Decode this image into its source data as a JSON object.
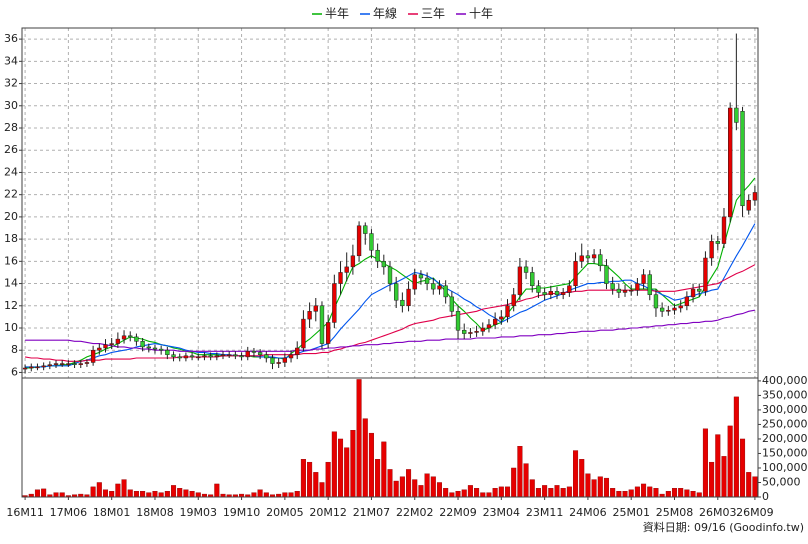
{
  "chart_data": {
    "type": "candlestick",
    "legend": "top",
    "grid": true,
    "up_color": "#e60000",
    "down_color": "#33cc33",
    "wick_color": "#202020",
    "categories": [
      "16M11",
      null,
      null,
      null,
      null,
      null,
      null,
      "17M06",
      null,
      null,
      null,
      null,
      null,
      null,
      "18M01",
      null,
      null,
      null,
      null,
      null,
      null,
      "18M08",
      null,
      null,
      null,
      null,
      null,
      null,
      "19M03",
      null,
      null,
      null,
      null,
      null,
      null,
      "19M10",
      null,
      null,
      null,
      null,
      null,
      null,
      "20M05",
      null,
      null,
      null,
      null,
      null,
      null,
      "20M12",
      null,
      null,
      null,
      null,
      null,
      null,
      "21M07",
      null,
      null,
      null,
      null,
      null,
      null,
      "22M02",
      null,
      null,
      null,
      null,
      null,
      null,
      "22M09",
      null,
      null,
      null,
      null,
      null,
      null,
      "23M04",
      null,
      null,
      null,
      null,
      null,
      null,
      "23M11",
      null,
      null,
      null,
      null,
      null,
      null,
      "24M06",
      null,
      null,
      null,
      null,
      null,
      null,
      "25M01",
      null,
      null,
      null,
      null,
      null,
      null,
      "25M08",
      null,
      null,
      null,
      null,
      null,
      null,
      "26M03",
      null,
      null,
      null,
      null,
      null,
      "26M09"
    ],
    "open": [
      6.3,
      6.4,
      6.5,
      6.5,
      6.6,
      6.7,
      6.8,
      6.8,
      6.8,
      6.7,
      6.8,
      6.9,
      8.0,
      8.2,
      8.5,
      8.6,
      9.0,
      9.3,
      9.2,
      8.8,
      8.3,
      8.2,
      8.1,
      8.0,
      7.6,
      7.4,
      7.3,
      7.5,
      7.4,
      7.4,
      7.5,
      7.4,
      7.5,
      7.6,
      7.6,
      7.5,
      7.4,
      7.9,
      7.8,
      7.6,
      7.3,
      6.8,
      6.9,
      7.3,
      7.6,
      8.2,
      10.8,
      11.5,
      12.0,
      8.6,
      10.5,
      14.0,
      15.0,
      15.5,
      16.5,
      19.2,
      18.5,
      17.0,
      16.0,
      15.5,
      14.0,
      12.5,
      12.0,
      13.5,
      14.8,
      14.5,
      14.0,
      13.5,
      13.8,
      12.8,
      11.5,
      9.8,
      9.5,
      9.6,
      9.7,
      10.0,
      10.3,
      10.8,
      11.0,
      12.0,
      13.0,
      15.5,
      15.0,
      13.8,
      13.2,
      13.0,
      13.3,
      13.0,
      13.2,
      13.8,
      16.0,
      16.5,
      16.3,
      16.6,
      15.6,
      14.0,
      13.5,
      13.2,
      13.4,
      13.4,
      14.0,
      14.8,
      13.0,
      11.8,
      11.5,
      11.6,
      11.8,
      12.0,
      12.8,
      13.5,
      13.3,
      16.3,
      17.8,
      17.6,
      20.0,
      29.8,
      29.5,
      20.6,
      21.5
    ],
    "high": [
      6.7,
      6.8,
      6.8,
      6.9,
      7.0,
      7.1,
      7.1,
      7.1,
      7.1,
      7.1,
      7.2,
      8.4,
      8.6,
      9.0,
      9.1,
      9.6,
      9.8,
      9.7,
      9.5,
      9.1,
      8.6,
      8.5,
      8.4,
      8.3,
      7.9,
      7.7,
      7.8,
      7.8,
      7.7,
      7.8,
      7.8,
      7.8,
      7.9,
      7.9,
      7.9,
      7.8,
      8.3,
      8.2,
      8.1,
      7.9,
      7.6,
      7.3,
      7.7,
      8.0,
      8.8,
      11.6,
      12.3,
      12.7,
      12.4,
      11.2,
      14.8,
      16.0,
      16.8,
      17.5,
      19.6,
      19.5,
      18.9,
      17.6,
      16.6,
      16.0,
      14.6,
      13.2,
      14.2,
      15.3,
      15.2,
      15.0,
      14.5,
      14.3,
      14.3,
      13.3,
      12.0,
      10.4,
      10.0,
      10.2,
      10.5,
      10.8,
      11.4,
      11.6,
      12.6,
      13.6,
      16.3,
      16.1,
      15.5,
      14.3,
      13.6,
      13.8,
      13.7,
      13.6,
      14.3,
      16.8,
      17.6,
      17.0,
      17.1,
      17.1,
      16.2,
      14.6,
      14.0,
      13.9,
      13.9,
      14.5,
      15.3,
      15.2,
      13.5,
      12.3,
      12.0,
      12.2,
      12.5,
      13.3,
      14.0,
      14.0,
      16.9,
      18.4,
      18.3,
      20.8,
      30.3,
      36.5,
      29.9,
      22.0,
      22.8
    ],
    "low": [
      5.9,
      6.1,
      6.2,
      6.2,
      6.3,
      6.4,
      6.5,
      6.5,
      6.4,
      6.4,
      6.5,
      6.6,
      7.6,
      7.8,
      8.1,
      8.2,
      8.6,
      8.8,
      8.4,
      7.9,
      7.8,
      7.7,
      7.6,
      7.2,
      7.0,
      7.0,
      7.0,
      7.1,
      7.1,
      7.1,
      7.1,
      7.1,
      7.2,
      7.3,
      7.2,
      7.1,
      7.1,
      7.4,
      7.2,
      6.9,
      6.3,
      6.4,
      6.5,
      6.9,
      7.2,
      7.9,
      10.0,
      10.6,
      8.1,
      8.2,
      10.0,
      13.0,
      14.2,
      14.8,
      16.0,
      17.5,
      16.3,
      15.4,
      14.8,
      13.3,
      11.8,
      11.4,
      11.5,
      13.0,
      13.9,
      13.4,
      13.0,
      13.0,
      12.2,
      11.0,
      9.0,
      9.0,
      9.1,
      9.2,
      9.3,
      9.6,
      9.9,
      10.3,
      10.5,
      11.5,
      12.5,
      14.4,
      13.2,
      12.7,
      12.5,
      12.6,
      12.6,
      12.6,
      12.8,
      13.3,
      15.4,
      15.8,
      15.8,
      15.1,
      13.5,
      13.0,
      12.7,
      12.8,
      12.9,
      12.9,
      13.5,
      12.5,
      11.0,
      11.0,
      11.1,
      11.2,
      11.4,
      11.6,
      12.3,
      12.8,
      12.9,
      15.6,
      17.0,
      17.2,
      19.5,
      27.8,
      20.0,
      20.2,
      21.0
    ],
    "close": [
      6.4,
      6.5,
      6.5,
      6.6,
      6.7,
      6.8,
      6.8,
      6.8,
      6.7,
      6.8,
      6.9,
      8.0,
      8.2,
      8.5,
      8.6,
      9.0,
      9.3,
      9.2,
      8.8,
      8.3,
      8.2,
      8.1,
      8.0,
      7.6,
      7.4,
      7.3,
      7.5,
      7.4,
      7.4,
      7.5,
      7.4,
      7.5,
      7.6,
      7.6,
      7.5,
      7.4,
      7.9,
      7.8,
      7.6,
      7.3,
      6.8,
      6.9,
      7.3,
      7.6,
      8.2,
      10.8,
      11.5,
      12.0,
      8.6,
      10.5,
      14.0,
      15.0,
      15.5,
      16.5,
      19.2,
      18.5,
      17.0,
      16.0,
      15.5,
      14.0,
      12.5,
      12.0,
      13.5,
      14.8,
      14.5,
      14.0,
      13.5,
      13.8,
      12.8,
      11.5,
      9.8,
      9.5,
      9.6,
      9.7,
      10.0,
      10.3,
      10.8,
      11.0,
      12.0,
      13.0,
      15.5,
      15.0,
      13.8,
      13.2,
      13.0,
      13.3,
      13.0,
      13.2,
      13.8,
      16.0,
      16.5,
      16.3,
      16.6,
      15.6,
      14.0,
      13.5,
      13.2,
      13.4,
      13.4,
      14.0,
      14.8,
      13.0,
      11.8,
      11.5,
      11.6,
      11.8,
      12.0,
      12.8,
      13.5,
      13.3,
      16.3,
      17.8,
      17.6,
      20.0,
      29.8,
      28.5,
      21.0,
      21.5,
      22.2
    ],
    "ylim": [
      5.5,
      37
    ],
    "yticks": [
      6,
      8,
      10,
      12,
      14,
      16,
      18,
      20,
      22,
      24,
      26,
      28,
      30,
      32,
      34,
      36
    ],
    "series": [
      {
        "name": "半年",
        "color": "#00b000",
        "values": [
          6.4,
          6.4,
          6.5,
          6.5,
          6.6,
          6.6,
          6.7,
          6.7,
          6.9,
          7.1,
          7.4,
          7.6,
          7.8,
          8.1,
          8.3,
          8.6,
          8.9,
          9.2,
          9.1,
          9.0,
          8.8,
          8.7,
          8.5,
          8.4,
          8.2,
          8.1,
          7.9,
          7.8,
          7.6,
          7.6,
          7.6,
          7.6,
          7.5,
          7.5,
          7.5,
          7.5,
          7.5,
          7.4,
          7.4,
          7.4,
          7.3,
          7.3,
          7.2,
          7.7,
          8.1,
          8.6,
          9.0,
          9.5,
          10.0,
          10.5,
          11.8,
          13.0,
          14.3,
          15.5,
          15.8,
          16.2,
          16.5,
          16.2,
          15.8,
          15.5,
          15.2,
          14.8,
          14.4,
          14.0,
          14.2,
          14.3,
          14.5,
          13.9,
          13.3,
          12.6,
          12.0,
          11.5,
          10.9,
          10.4,
          9.8,
          10.0,
          10.3,
          10.5,
          11.3,
          12.0,
          12.8,
          13.5,
          13.5,
          13.6,
          13.6,
          13.7,
          13.8,
          13.9,
          14.0,
          14.6,
          15.2,
          15.8,
          15.8,
          15.7,
          15.6,
          15.1,
          14.6,
          14.0,
          13.5,
          13.5,
          13.5,
          13.5,
          13.5,
          13.0,
          12.5,
          12.0,
          12.2,
          12.4,
          12.6,
          12.8,
          13.7,
          14.6,
          15.5,
          17.5,
          19.5,
          21.5,
          22.2,
          22.8,
          23.5
        ]
      },
      {
        "name": "年線",
        "color": "#0055ee",
        "values": [
          6.5,
          6.5,
          6.5,
          6.5,
          6.6,
          6.6,
          6.6,
          6.6,
          6.8,
          7.0,
          7.1,
          7.3,
          7.5,
          7.6,
          7.8,
          7.9,
          8.0,
          8.1,
          8.3,
          8.4,
          8.5,
          8.6,
          8.5,
          8.4,
          8.3,
          8.2,
          8.0,
          7.9,
          7.8,
          7.8,
          7.7,
          7.7,
          7.6,
          7.6,
          7.5,
          7.5,
          7.5,
          7.5,
          7.4,
          7.4,
          7.4,
          7.3,
          7.3,
          7.5,
          7.7,
          7.9,
          8.0,
          8.2,
          8.4,
          8.6,
          9.2,
          9.9,
          10.5,
          11.1,
          11.7,
          12.4,
          13.0,
          13.3,
          13.6,
          13.9,
          14.1,
          14.4,
          14.7,
          15.0,
          14.9,
          14.7,
          14.4,
          14.0,
          13.6,
          13.3,
          13.0,
          12.6,
          12.3,
          11.9,
          11.6,
          11.2,
          10.9,
          10.5,
          10.8,
          11.1,
          11.4,
          11.6,
          11.9,
          12.2,
          12.5,
          12.7,
          12.9,
          13.1,
          13.4,
          13.6,
          13.8,
          14.0,
          14.0,
          14.1,
          14.1,
          14.2,
          14.2,
          14.3,
          14.3,
          14.0,
          13.8,
          13.5,
          13.3,
          13.0,
          12.8,
          12.5,
          12.6,
          12.8,
          12.9,
          13.1,
          13.2,
          13.4,
          13.5,
          14.5,
          15.5,
          16.5,
          17.4,
          18.4,
          19.4
        ]
      },
      {
        "name": "三年",
        "color": "#e0004a",
        "values": [
          7.4,
          7.3,
          7.3,
          7.2,
          7.2,
          7.1,
          7.1,
          7.0,
          7.0,
          7.0,
          7.1,
          7.1,
          7.1,
          7.2,
          7.2,
          7.2,
          7.2,
          7.2,
          7.3,
          7.3,
          7.3,
          7.3,
          7.3,
          7.3,
          7.3,
          7.4,
          7.4,
          7.4,
          7.4,
          7.4,
          7.4,
          7.4,
          7.5,
          7.5,
          7.5,
          7.5,
          7.5,
          7.5,
          7.5,
          7.6,
          7.6,
          7.6,
          7.6,
          7.6,
          7.6,
          7.7,
          7.7,
          7.7,
          7.8,
          7.8,
          8.0,
          8.1,
          8.3,
          8.4,
          8.6,
          8.7,
          8.9,
          9.1,
          9.3,
          9.5,
          9.7,
          9.9,
          10.2,
          10.4,
          10.5,
          10.6,
          10.7,
          10.9,
          11.0,
          11.1,
          11.2,
          11.3,
          11.4,
          11.5,
          11.7,
          11.8,
          11.9,
          12.0,
          12.1,
          12.3,
          12.4,
          12.6,
          12.7,
          12.9,
          13.0,
          13.1,
          13.1,
          13.2,
          13.2,
          13.3,
          13.3,
          13.4,
          13.4,
          13.4,
          13.4,
          13.4,
          13.4,
          13.4,
          13.4,
          13.4,
          13.4,
          13.4,
          13.3,
          13.3,
          13.3,
          13.3,
          13.4,
          13.5,
          13.6,
          13.7,
          13.8,
          13.9,
          14.0,
          14.3,
          14.6,
          14.9,
          15.1,
          15.4,
          15.7
        ]
      },
      {
        "name": "十年",
        "color": "#8000c0",
        "values": [
          8.9,
          8.9,
          8.9,
          8.9,
          8.9,
          8.9,
          8.9,
          8.9,
          8.8,
          8.8,
          8.7,
          8.6,
          8.6,
          8.5,
          8.4,
          8.3,
          8.3,
          8.2,
          8.2,
          8.1,
          8.1,
          8.0,
          8.0,
          8.0,
          8.0,
          7.9,
          7.9,
          7.9,
          7.9,
          7.9,
          7.9,
          7.9,
          7.9,
          7.9,
          7.9,
          7.9,
          7.9,
          7.9,
          7.9,
          7.9,
          7.9,
          7.9,
          7.9,
          7.9,
          8.0,
          8.0,
          8.0,
          8.1,
          8.1,
          8.2,
          8.2,
          8.3,
          8.3,
          8.4,
          8.4,
          8.5,
          8.5,
          8.5,
          8.6,
          8.6,
          8.7,
          8.7,
          8.8,
          8.8,
          8.8,
          8.9,
          8.9,
          8.9,
          9.0,
          9.0,
          9.0,
          9.0,
          9.0,
          9.1,
          9.1,
          9.1,
          9.1,
          9.2,
          9.2,
          9.2,
          9.3,
          9.3,
          9.3,
          9.4,
          9.4,
          9.4,
          9.5,
          9.5,
          9.6,
          9.6,
          9.7,
          9.7,
          9.7,
          9.8,
          9.8,
          9.8,
          9.9,
          9.9,
          10.0,
          10.0,
          10.1,
          10.1,
          10.2,
          10.2,
          10.3,
          10.3,
          10.4,
          10.4,
          10.5,
          10.5,
          10.6,
          10.6,
          10.7,
          10.9,
          11.0,
          11.2,
          11.3,
          11.5,
          11.6
        ]
      }
    ],
    "volume": {
      "color": "#e60000",
      "values": [
        5000,
        10000,
        25000,
        28000,
        8000,
        15000,
        15000,
        5000,
        8000,
        10000,
        8000,
        35000,
        50000,
        25000,
        20000,
        45000,
        60000,
        25000,
        20000,
        20000,
        15000,
        20000,
        15000,
        20000,
        40000,
        30000,
        25000,
        20000,
        15000,
        10000,
        8000,
        45000,
        10000,
        8000,
        8000,
        10000,
        8000,
        15000,
        25000,
        15000,
        8000,
        10000,
        15000,
        15000,
        20000,
        130000,
        120000,
        85000,
        50000,
        120000,
        225000,
        200000,
        170000,
        230000,
        405000,
        270000,
        220000,
        130000,
        190000,
        95000,
        55000,
        70000,
        95000,
        60000,
        40000,
        80000,
        70000,
        50000,
        30000,
        15000,
        20000,
        25000,
        40000,
        30000,
        15000,
        15000,
        30000,
        35000,
        35000,
        100000,
        175000,
        115000,
        60000,
        30000,
        40000,
        30000,
        40000,
        30000,
        35000,
        160000,
        130000,
        80000,
        60000,
        70000,
        65000,
        30000,
        20000,
        20000,
        25000,
        35000,
        45000,
        35000,
        30000,
        10000,
        20000,
        30000,
        30000,
        25000,
        20000,
        15000,
        235000,
        120000,
        215000,
        140000,
        245000,
        345000,
        200000,
        85000,
        70000
      ],
      "ylim": [
        0,
        410000
      ],
      "yticks": [
        0,
        {
          "value": 50000,
          "label": "50,000"
        },
        {
          "value": 100000,
          "label": "100,000"
        },
        {
          "value": 150000,
          "label": "150,000"
        },
        {
          "value": 200000,
          "label": "200,000"
        },
        {
          "value": 250000,
          "label": "250,000"
        },
        {
          "value": 300000,
          "label": "300,000"
        },
        {
          "value": 350000,
          "label": "350,000"
        },
        {
          "value": 400000,
          "label": "400,000"
        }
      ]
    },
    "footer": "資料日期: 09/16 (Goodinfo.tw)"
  }
}
